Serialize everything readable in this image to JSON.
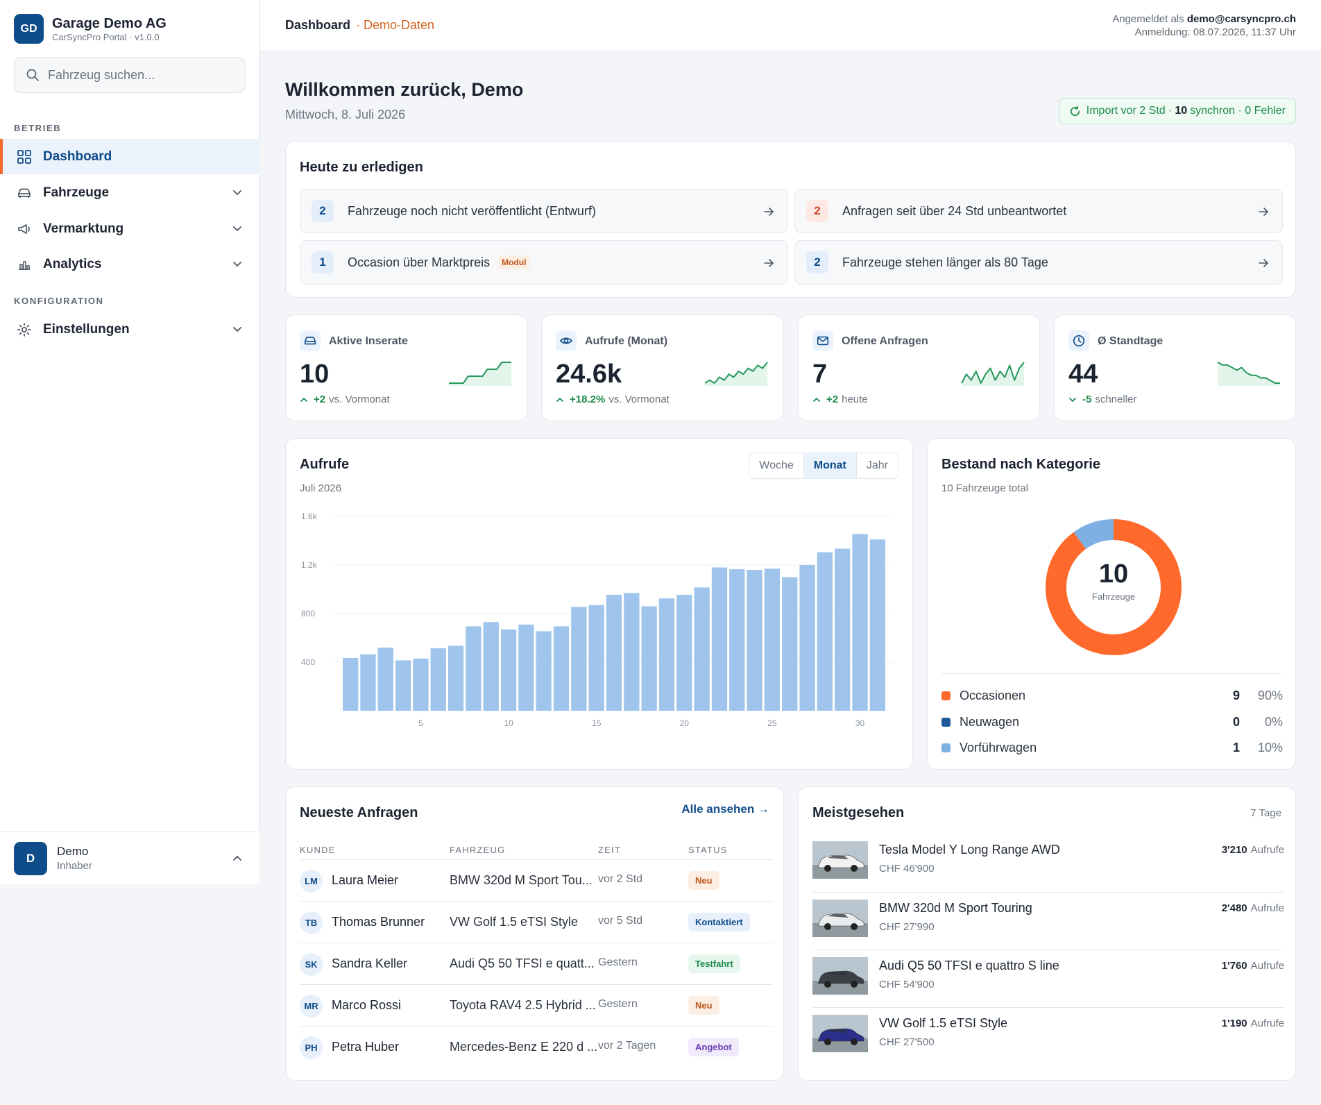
{
  "brand": {
    "initials": "GD",
    "name": "Garage Demo AG",
    "subtitle": "CarSyncPro Portal · v1.0.0"
  },
  "search": {
    "placeholder": "Fahrzeug suchen..."
  },
  "nav": {
    "section_operations": "BETRIEB",
    "section_config": "KONFIGURATION",
    "items": [
      {
        "label": "Dashboard",
        "icon": "grid-icon",
        "active": true
      },
      {
        "label": "Fahrzeuge",
        "icon": "car-icon"
      },
      {
        "label": "Vermarktung",
        "icon": "megaphone-icon"
      },
      {
        "label": "Analytics",
        "icon": "bar-chart-icon"
      },
      {
        "label": "Einstellungen",
        "icon": "gear-icon"
      }
    ]
  },
  "user": {
    "initial": "D",
    "name": "Demo",
    "role": "Inhaber"
  },
  "topbar": {
    "breadcrumb": "Dashboard",
    "breadcrumb_tag": "· Demo-Daten",
    "logged_in_prefix": "Angemeldet als",
    "email": "demo@carsyncpro.ch",
    "login_time": "Anmeldung: 08.07.2026, 11:37 Uhr"
  },
  "header": {
    "welcome": "Willkommen zurück, Demo",
    "date": "Mittwoch, 8. Juli 2026",
    "sync_prefix": "Import vor 2 Std ·",
    "sync_count": "10",
    "sync_suffix": "synchron · 0 Fehler"
  },
  "todo": {
    "title": "Heute zu erledigen",
    "items": [
      {
        "count": "2",
        "text": "Fahrzeuge noch nicht veröffentlicht (Entwurf)",
        "color": "#0f4c8a"
      },
      {
        "count": "2",
        "text": "Anfragen seit über 24 Std unbeantwortet",
        "color": "#d0452a"
      },
      {
        "count": "1",
        "text": "Occasion über Marktpreis",
        "badge": "Modul",
        "color": "#0f4c8a"
      },
      {
        "count": "2",
        "text": "Fahrzeuge stehen länger als 80 Tage",
        "color": "#0f4c8a"
      }
    ]
  },
  "kpis": [
    {
      "label": "Aktive Inserate",
      "icon": "car-icon",
      "value": "10",
      "delta": "+2",
      "delta_text": "vs. Vormonat",
      "trend": "up",
      "spark": [
        2,
        2,
        2,
        2,
        4,
        4,
        4,
        4,
        6,
        6,
        6,
        8,
        8,
        8
      ]
    },
    {
      "label": "Aufrufe (Monat)",
      "icon": "eye-icon",
      "value": "24.6k",
      "delta": "+18.2%",
      "delta_text": "vs. Vormonat",
      "trend": "up",
      "spark": [
        2,
        3,
        2,
        4,
        3,
        5,
        4,
        6,
        5,
        7,
        6,
        8,
        7,
        9
      ]
    },
    {
      "label": "Offene Anfragen",
      "icon": "mail-icon",
      "value": "7",
      "delta": "+2",
      "delta_text": "heute",
      "trend": "up",
      "spark": [
        3,
        6,
        4,
        7,
        3,
        6,
        8,
        4,
        7,
        5,
        9,
        4,
        8,
        10
      ]
    },
    {
      "label": "Ø Standtage",
      "icon": "clock-icon",
      "value": "44",
      "delta": "-5",
      "delta_text": "schneller",
      "trend": "down",
      "spark": [
        9,
        8,
        8,
        7,
        6,
        7,
        5,
        4,
        4,
        3,
        3,
        2,
        1,
        1
      ]
    }
  ],
  "views_chart": {
    "title": "Aufrufe",
    "subtitle": "Juli 2026",
    "tabs": [
      "Woche",
      "Monat",
      "Jahr"
    ],
    "active_tab": "Monat"
  },
  "chart_data": [
    {
      "type": "bar",
      "title": "Aufrufe",
      "subtitle": "Juli 2026",
      "x": [
        1,
        2,
        3,
        4,
        5,
        6,
        7,
        8,
        9,
        10,
        11,
        12,
        13,
        14,
        15,
        16,
        17,
        18,
        19,
        20,
        21,
        22,
        23,
        24,
        25,
        26,
        27,
        28,
        29,
        30,
        31
      ],
      "values": [
        435,
        465,
        520,
        415,
        430,
        515,
        535,
        695,
        730,
        670,
        710,
        655,
        695,
        855,
        870,
        955,
        970,
        860,
        925,
        955,
        1015,
        1180,
        1165,
        1160,
        1170,
        1100,
        1200,
        1305,
        1335,
        1455,
        1410
      ],
      "ylim": [
        0,
        1600
      ],
      "yticks": [
        "1.6k",
        "1.2k",
        "800",
        "400"
      ],
      "ytick_values": [
        1600,
        1200,
        800,
        400
      ],
      "xticks": [
        5,
        10,
        15,
        20,
        25,
        30
      ],
      "grid": true,
      "color": "#9fc5ec"
    },
    {
      "type": "pie",
      "title": "Bestand nach Kategorie",
      "subtitle": "10 Fahrzeuge total",
      "center_value": "10",
      "center_label": "Fahrzeuge",
      "categories": [
        "Occasionen",
        "Neuwagen",
        "Vorführwagen"
      ],
      "values": [
        9,
        0,
        1
      ],
      "percents": [
        "90%",
        "0%",
        "10%"
      ],
      "colors": [
        "#ff6a2c",
        "#1d5a9c",
        "#7eb0e3"
      ]
    }
  ],
  "inquiries": {
    "title": "Neueste Anfragen",
    "link": "Alle ansehen →",
    "columns": [
      "KUNDE",
      "FAHRZEUG",
      "ZEIT",
      "STATUS"
    ],
    "rows": [
      {
        "initials": "LM",
        "name": "Laura Meier",
        "vehicle": "BMW 320d M Sport Tou...",
        "time": "vor 2 Std",
        "status": "Neu",
        "status_kind": "neu"
      },
      {
        "initials": "TB",
        "name": "Thomas Brunner",
        "vehicle": "VW Golf 1.5 eTSI Style",
        "time": "vor 5 Std",
        "status": "Kontaktiert",
        "status_kind": "kontaktiert"
      },
      {
        "initials": "SK",
        "name": "Sandra Keller",
        "vehicle": "Audi Q5 50 TFSI e quatt...",
        "time": "Gestern",
        "status": "Testfahrt",
        "status_kind": "testfahrt"
      },
      {
        "initials": "MR",
        "name": "Marco Rossi",
        "vehicle": "Toyota RAV4 2.5 Hybrid ...",
        "time": "Gestern",
        "status": "Neu",
        "status_kind": "neu"
      },
      {
        "initials": "PH",
        "name": "Petra Huber",
        "vehicle": "Mercedes-Benz E 220 d ...",
        "time": "vor 2 Tagen",
        "status": "Angebot",
        "status_kind": "angebot"
      }
    ]
  },
  "most_viewed": {
    "title": "Meistgesehen",
    "period": "7 Tage",
    "views_unit": "Aufrufe",
    "rows": [
      {
        "name": "Tesla Model Y Long Range AWD",
        "price": "CHF 46'900",
        "views": "3'210",
        "car_color": "#f2f2f2"
      },
      {
        "name": "BMW 320d M Sport Touring",
        "price": "CHF 27'990",
        "views": "2'480",
        "car_color": "#e9ecef"
      },
      {
        "name": "Audi Q5 50 TFSI e quattro S line",
        "price": "CHF 54'900",
        "views": "1'760",
        "car_color": "#3b3f46"
      },
      {
        "name": "VW Golf 1.5 eTSI Style",
        "price": "CHF 27'500",
        "views": "1'190",
        "car_color": "#2a2f8a"
      }
    ]
  }
}
